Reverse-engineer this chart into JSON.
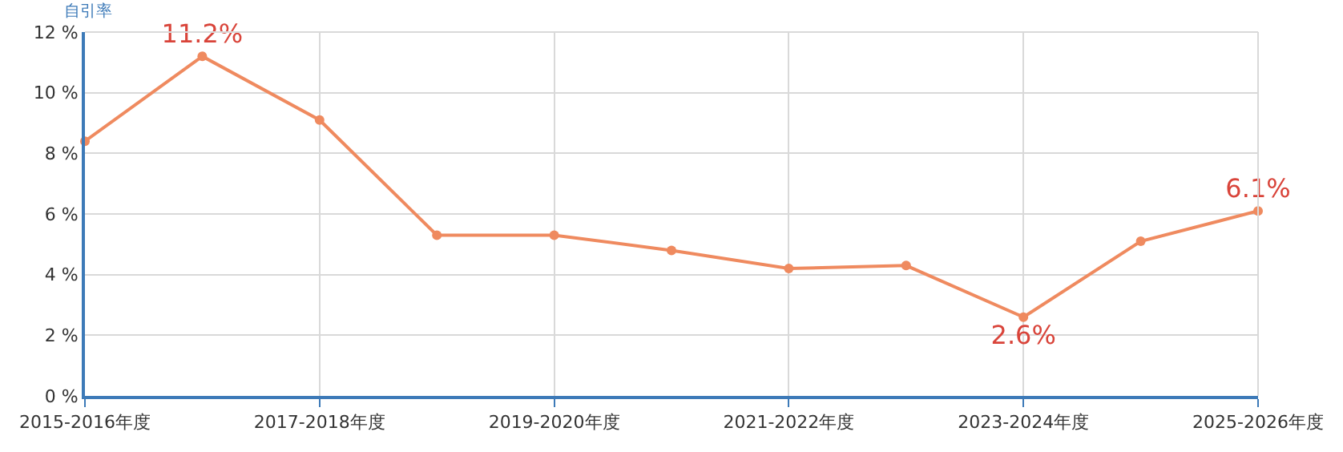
{
  "chart_data": {
    "type": "line",
    "ylabel": "自引率",
    "categories": [
      "2015-2016年度",
      null,
      "2017-2018年度",
      null,
      "2019-2020年度",
      null,
      "2021-2022年度",
      null,
      "2023-2024年度",
      null,
      "2025-2026年度"
    ],
    "series": [
      {
        "color": "#ef8a5f",
        "values": [
          8.4,
          11.2,
          9.1,
          5.3,
          5.3,
          4.8,
          4.2,
          4.3,
          2.6,
          5.1,
          6.1
        ],
        "value_labels": [
          null,
          "11.2%",
          null,
          null,
          null,
          null,
          null,
          null,
          "2.6%",
          null,
          "6.1%"
        ]
      }
    ],
    "ylim": [
      0,
      12
    ],
    "yticks": [
      {
        "value": 0,
        "label": "0 %"
      },
      {
        "value": 2,
        "label": "2 %"
      },
      {
        "value": 4,
        "label": "4 %"
      },
      {
        "value": 6,
        "label": "6 %"
      },
      {
        "value": 8,
        "label": "8 %"
      },
      {
        "value": 10,
        "label": "10 %"
      },
      {
        "value": 12,
        "label": "12 %"
      }
    ],
    "grid": true,
    "marker": "circle",
    "line_style": "solid",
    "legend": false
  }
}
